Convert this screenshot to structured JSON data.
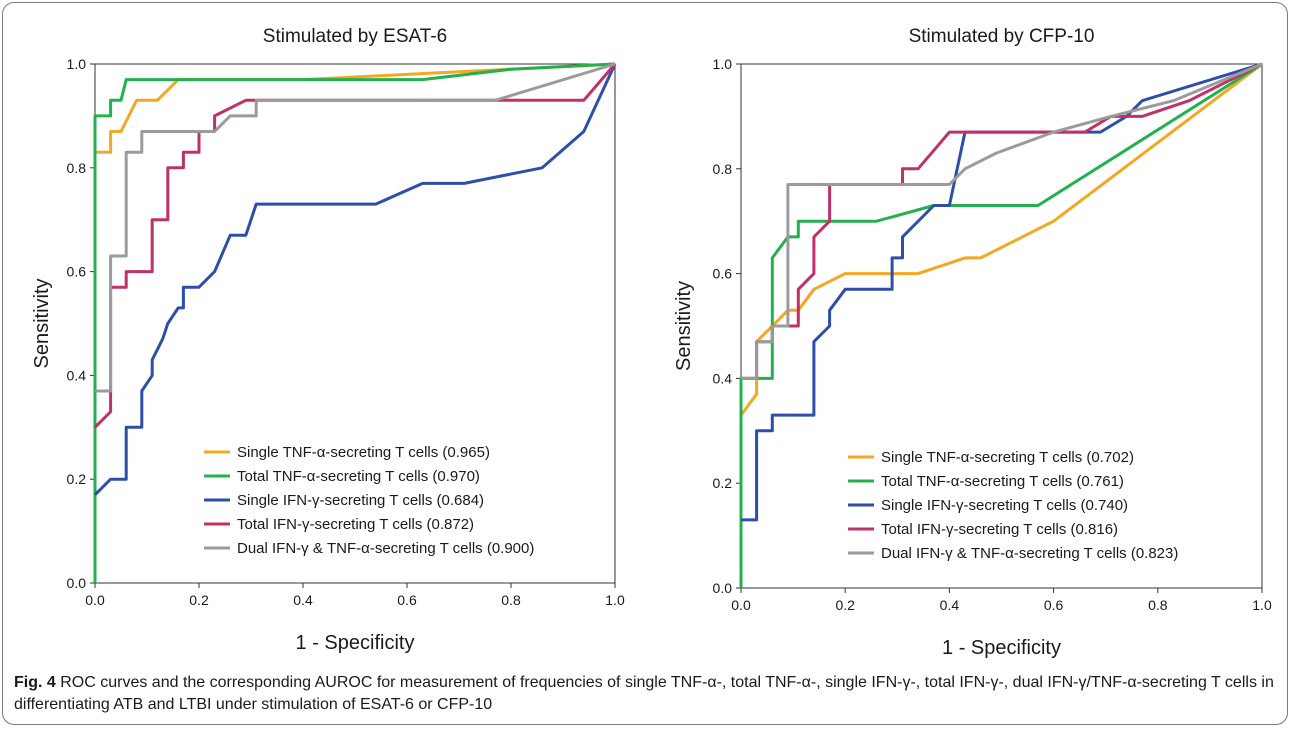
{
  "chart_data": [
    {
      "type": "line",
      "title": "Stimulated by ESAT-6",
      "xlabel": "1 - Specificity",
      "ylabel": "Sensitivity",
      "xlim": [
        0,
        1
      ],
      "ylim": [
        0,
        1
      ],
      "xticks": [
        "0.0",
        "0.2",
        "0.4",
        "0.6",
        "0.8",
        "1.0"
      ],
      "yticks": [
        "0.0",
        "0.2",
        "0.4",
        "0.6",
        "0.8",
        "1.0"
      ],
      "grid": false,
      "legend_position": "bottom-right",
      "series": [
        {
          "name": "Single TNF-α-secreting T cells (0.965)",
          "color": "#f5a623",
          "points": [
            [
              0,
              0
            ],
            [
              0,
              0.83
            ],
            [
              0.03,
              0.83
            ],
            [
              0.03,
              0.87
            ],
            [
              0.05,
              0.87
            ],
            [
              0.08,
              0.93
            ],
            [
              0.12,
              0.93
            ],
            [
              0.16,
              0.97
            ],
            [
              0.2,
              0.97
            ],
            [
              0.4,
              0.97
            ],
            [
              0.6,
              0.98
            ],
            [
              0.8,
              0.99
            ],
            [
              1,
              1
            ]
          ]
        },
        {
          "name": "Total TNF-α-secreting T cells (0.970)",
          "color": "#22b14c",
          "points": [
            [
              0,
              0
            ],
            [
              0,
              0.9
            ],
            [
              0.03,
              0.9
            ],
            [
              0.03,
              0.93
            ],
            [
              0.05,
              0.93
            ],
            [
              0.06,
              0.97
            ],
            [
              0.4,
              0.97
            ],
            [
              0.63,
              0.97
            ],
            [
              0.8,
              0.99
            ],
            [
              1,
              1
            ]
          ]
        },
        {
          "name": "Single IFN-γ-secreting T cells (0.684)",
          "color": "#2e4ea8",
          "points": [
            [
              0,
              0.17
            ],
            [
              0.03,
              0.2
            ],
            [
              0.06,
              0.2
            ],
            [
              0.06,
              0.3
            ],
            [
              0.09,
              0.3
            ],
            [
              0.09,
              0.37
            ],
            [
              0.11,
              0.4
            ],
            [
              0.11,
              0.43
            ],
            [
              0.13,
              0.47
            ],
            [
              0.14,
              0.5
            ],
            [
              0.16,
              0.53
            ],
            [
              0.17,
              0.53
            ],
            [
              0.17,
              0.57
            ],
            [
              0.2,
              0.57
            ],
            [
              0.23,
              0.6
            ],
            [
              0.26,
              0.67
            ],
            [
              0.29,
              0.67
            ],
            [
              0.31,
              0.73
            ],
            [
              0.54,
              0.73
            ],
            [
              0.63,
              0.77
            ],
            [
              0.71,
              0.77
            ],
            [
              0.86,
              0.8
            ],
            [
              0.94,
              0.87
            ],
            [
              1,
              1
            ]
          ]
        },
        {
          "name": "Total IFN-γ-secreting T cells (0.872)",
          "color": "#c0306b",
          "points": [
            [
              0,
              0.3
            ],
            [
              0.03,
              0.33
            ],
            [
              0.03,
              0.57
            ],
            [
              0.06,
              0.57
            ],
            [
              0.06,
              0.6
            ],
            [
              0.11,
              0.6
            ],
            [
              0.11,
              0.7
            ],
            [
              0.14,
              0.7
            ],
            [
              0.14,
              0.8
            ],
            [
              0.17,
              0.8
            ],
            [
              0.17,
              0.83
            ],
            [
              0.2,
              0.83
            ],
            [
              0.2,
              0.87
            ],
            [
              0.23,
              0.87
            ],
            [
              0.23,
              0.9
            ],
            [
              0.29,
              0.93
            ],
            [
              0.6,
              0.93
            ],
            [
              0.94,
              0.93
            ],
            [
              1,
              1
            ]
          ]
        },
        {
          "name": "Dual IFN-γ & TNF-α-secreting T cells (0.900)",
          "color": "#9b9b9b",
          "points": [
            [
              0,
              0.37
            ],
            [
              0.03,
              0.37
            ],
            [
              0.03,
              0.63
            ],
            [
              0.06,
              0.63
            ],
            [
              0.06,
              0.83
            ],
            [
              0.09,
              0.83
            ],
            [
              0.09,
              0.87
            ],
            [
              0.23,
              0.87
            ],
            [
              0.26,
              0.9
            ],
            [
              0.31,
              0.9
            ],
            [
              0.31,
              0.93
            ],
            [
              0.77,
              0.93
            ],
            [
              1,
              1
            ]
          ]
        }
      ]
    },
    {
      "type": "line",
      "title": "Stimulated by CFP-10",
      "xlabel": "1 - Specificity",
      "ylabel": "Sensitivity",
      "xlim": [
        0,
        1
      ],
      "ylim": [
        0,
        1
      ],
      "xticks": [
        "0.0",
        "0.2",
        "0.4",
        "0.6",
        "0.8",
        "1.0"
      ],
      "yticks": [
        "0.0",
        "0.2",
        "0.4",
        "0.6",
        "0.8",
        "1.0"
      ],
      "grid": false,
      "legend_position": "bottom-right",
      "series": [
        {
          "name": "Single TNF-α-secreting T cells (0.702)",
          "color": "#f5a623",
          "points": [
            [
              0,
              0.33
            ],
            [
              0.03,
              0.37
            ],
            [
              0.03,
              0.47
            ],
            [
              0.06,
              0.5
            ],
            [
              0.09,
              0.53
            ],
            [
              0.11,
              0.53
            ],
            [
              0.14,
              0.57
            ],
            [
              0.2,
              0.6
            ],
            [
              0.34,
              0.6
            ],
            [
              0.43,
              0.63
            ],
            [
              0.46,
              0.63
            ],
            [
              0.6,
              0.7
            ],
            [
              1,
              1
            ]
          ]
        },
        {
          "name": "Total TNF-α-secreting T cells (0.761)",
          "color": "#22b14c",
          "points": [
            [
              0,
              0
            ],
            [
              0,
              0.4
            ],
            [
              0.06,
              0.4
            ],
            [
              0.06,
              0.63
            ],
            [
              0.09,
              0.67
            ],
            [
              0.11,
              0.67
            ],
            [
              0.11,
              0.7
            ],
            [
              0.26,
              0.7
            ],
            [
              0.37,
              0.73
            ],
            [
              0.57,
              0.73
            ],
            [
              1,
              1
            ]
          ]
        },
        {
          "name": "Single IFN-γ-secreting T cells (0.740)",
          "color": "#2e4ea8",
          "points": [
            [
              0,
              0.13
            ],
            [
              0.03,
              0.13
            ],
            [
              0.03,
              0.3
            ],
            [
              0.06,
              0.3
            ],
            [
              0.06,
              0.33
            ],
            [
              0.14,
              0.33
            ],
            [
              0.14,
              0.47
            ],
            [
              0.17,
              0.5
            ],
            [
              0.17,
              0.53
            ],
            [
              0.2,
              0.57
            ],
            [
              0.29,
              0.57
            ],
            [
              0.29,
              0.63
            ],
            [
              0.31,
              0.63
            ],
            [
              0.31,
              0.67
            ],
            [
              0.37,
              0.73
            ],
            [
              0.4,
              0.73
            ],
            [
              0.43,
              0.87
            ],
            [
              0.6,
              0.87
            ],
            [
              0.69,
              0.87
            ],
            [
              0.74,
              0.9
            ],
            [
              0.77,
              0.93
            ],
            [
              1,
              1
            ]
          ]
        },
        {
          "name": "Total IFN-γ-secreting T cells (0.816)",
          "color": "#c0306b",
          "points": [
            [
              0,
              0.4
            ],
            [
              0.03,
              0.4
            ],
            [
              0.03,
              0.47
            ],
            [
              0.06,
              0.47
            ],
            [
              0.06,
              0.5
            ],
            [
              0.11,
              0.5
            ],
            [
              0.11,
              0.57
            ],
            [
              0.14,
              0.6
            ],
            [
              0.14,
              0.67
            ],
            [
              0.17,
              0.7
            ],
            [
              0.17,
              0.77
            ],
            [
              0.31,
              0.77
            ],
            [
              0.31,
              0.8
            ],
            [
              0.34,
              0.8
            ],
            [
              0.4,
              0.87
            ],
            [
              0.57,
              0.87
            ],
            [
              0.66,
              0.87
            ],
            [
              0.71,
              0.9
            ],
            [
              0.77,
              0.9
            ],
            [
              0.86,
              0.93
            ],
            [
              1,
              1
            ]
          ]
        },
        {
          "name": "Dual IFN-γ & TNF-α-secreting T cells (0.823)",
          "color": "#9b9b9b",
          "points": [
            [
              0,
              0.4
            ],
            [
              0.03,
              0.4
            ],
            [
              0.03,
              0.47
            ],
            [
              0.06,
              0.47
            ],
            [
              0.06,
              0.5
            ],
            [
              0.09,
              0.5
            ],
            [
              0.09,
              0.77
            ],
            [
              0.4,
              0.77
            ],
            [
              0.43,
              0.8
            ],
            [
              0.49,
              0.83
            ],
            [
              0.6,
              0.87
            ],
            [
              0.71,
              0.9
            ],
            [
              0.83,
              0.93
            ],
            [
              1,
              1
            ]
          ]
        }
      ]
    }
  ],
  "caption": {
    "label": "Fig. 4",
    "text": " ROC curves and the corresponding AUROC for measurement of frequencies of single TNF-α-, total TNF-α-, single IFN-γ-, total IFN-γ-, dual IFN-γ/TNF-α-secreting T cells in differentiating ATB and LTBI under stimulation of ESAT-6 or CFP-10"
  }
}
